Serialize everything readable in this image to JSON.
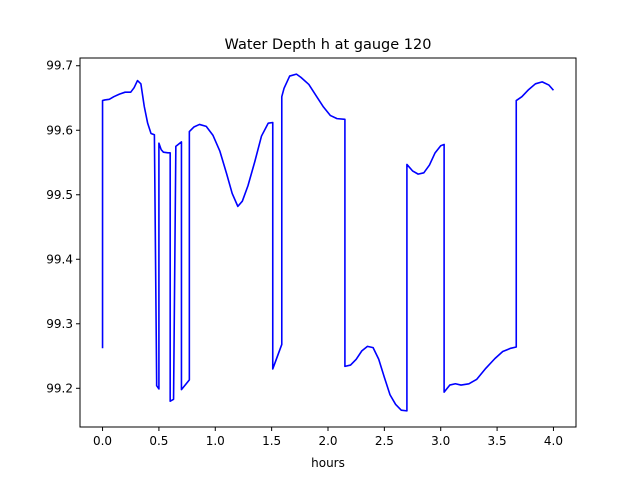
{
  "chart_data": {
    "type": "line",
    "title": "Water Depth h at gauge 120",
    "xlabel": "hours",
    "ylabel": "",
    "xlim": [
      -0.2,
      4.2
    ],
    "ylim": [
      99.14,
      99.712
    ],
    "xticks": [
      0.0,
      0.5,
      1.0,
      1.5,
      2.0,
      2.5,
      3.0,
      3.5,
      4.0
    ],
    "xtick_labels": [
      "0.0",
      "0.5",
      "1.0",
      "1.5",
      "2.0",
      "2.5",
      "3.0",
      "3.5",
      "4.0"
    ],
    "yticks": [
      99.2,
      99.3,
      99.4,
      99.5,
      99.6,
      99.7
    ],
    "ytick_labels": [
      "99.2",
      "99.3",
      "99.4",
      "99.5",
      "99.6",
      "99.7"
    ],
    "grid": false,
    "legend": "none",
    "series": [
      {
        "color": "#0000ff",
        "x": [
          0.0,
          0.0,
          0.02,
          0.06,
          0.1,
          0.15,
          0.2,
          0.25,
          0.28,
          0.31,
          0.34,
          0.37,
          0.4,
          0.43,
          0.46,
          0.48,
          0.48,
          0.5,
          0.5,
          0.52,
          0.54,
          0.58,
          0.6,
          0.6,
          0.63,
          0.65,
          0.65,
          0.7,
          0.7,
          0.77,
          0.77,
          0.81,
          0.86,
          0.92,
          0.98,
          1.04,
          1.1,
          1.15,
          1.2,
          1.24,
          1.29,
          1.35,
          1.41,
          1.47,
          1.51,
          1.51,
          1.59,
          1.59,
          1.61,
          1.66,
          1.72,
          1.76,
          1.83,
          1.9,
          1.96,
          2.02,
          2.08,
          2.15,
          2.15,
          2.2,
          2.25,
          2.3,
          2.35,
          2.4,
          2.45,
          2.5,
          2.55,
          2.6,
          2.65,
          2.7,
          2.7,
          2.75,
          2.8,
          2.85,
          2.9,
          2.95,
          3.0,
          3.03,
          3.03,
          3.08,
          3.13,
          3.18,
          3.25,
          3.32,
          3.4,
          3.48,
          3.55,
          3.62,
          3.67,
          3.67,
          3.72,
          3.78,
          3.84,
          3.9,
          3.96,
          4.0
        ],
        "y": [
          99.262,
          99.646,
          99.647,
          99.648,
          99.652,
          99.656,
          99.659,
          99.659,
          99.666,
          99.677,
          99.672,
          99.637,
          99.611,
          99.595,
          99.593,
          99.21,
          99.204,
          99.199,
          99.58,
          99.57,
          99.566,
          99.565,
          99.565,
          99.18,
          99.183,
          99.57,
          99.575,
          99.582,
          99.198,
          99.213,
          99.598,
          99.605,
          99.609,
          99.606,
          99.592,
          99.568,
          99.533,
          99.502,
          99.482,
          99.49,
          99.514,
          99.551,
          99.591,
          99.611,
          99.612,
          99.23,
          99.268,
          99.652,
          99.665,
          99.684,
          99.687,
          99.682,
          99.671,
          99.652,
          99.636,
          99.623,
          99.618,
          99.617,
          99.234,
          99.236,
          99.245,
          99.258,
          99.265,
          99.263,
          99.245,
          99.217,
          99.19,
          99.175,
          99.166,
          99.165,
          99.547,
          99.537,
          99.532,
          99.534,
          99.546,
          99.565,
          99.576,
          99.578,
          99.194,
          99.205,
          99.207,
          99.205,
          99.207,
          99.214,
          99.231,
          99.246,
          99.257,
          99.262,
          99.264,
          99.646,
          99.652,
          99.663,
          99.672,
          99.675,
          99.67,
          99.662
        ]
      }
    ]
  }
}
